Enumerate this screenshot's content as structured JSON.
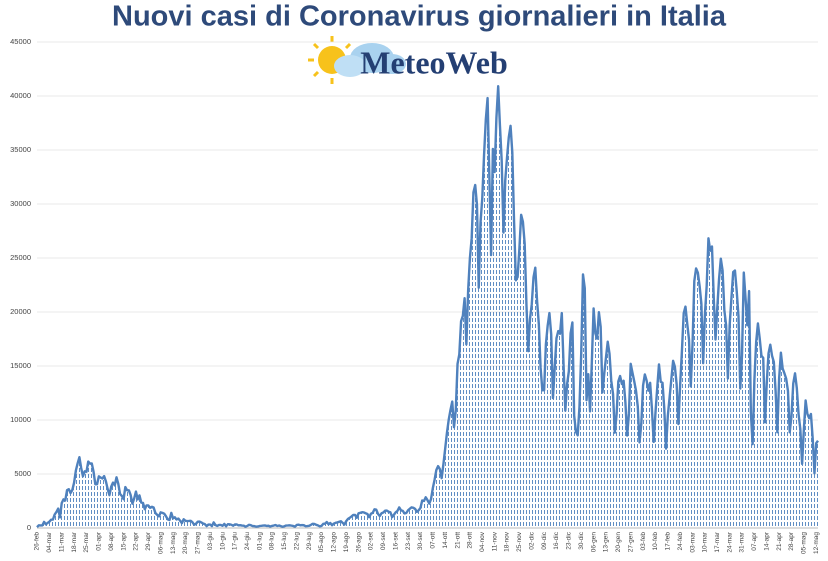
{
  "chart_data": {
    "type": "area",
    "title": "Nuovi casi di Coronavirus giornalieri in Italia",
    "annotations": [
      "MeteoWeb"
    ],
    "color": "#4f81bd",
    "grid": true,
    "ylim": [
      0,
      45000
    ],
    "yticks": [
      0,
      5000,
      10000,
      15000,
      20000,
      25000,
      30000,
      35000,
      40000,
      45000
    ],
    "categories": [
      "26-feb",
      null,
      null,
      null,
      null,
      null,
      null,
      "04-mar",
      null,
      null,
      null,
      null,
      null,
      null,
      "11-mar",
      null,
      null,
      null,
      null,
      null,
      null,
      "18-mar",
      null,
      null,
      null,
      null,
      null,
      null,
      "25-mar",
      null,
      null,
      null,
      null,
      null,
      null,
      "01-apr",
      null,
      null,
      null,
      null,
      null,
      null,
      "08-apr",
      null,
      null,
      null,
      null,
      null,
      null,
      "15-apr",
      null,
      null,
      null,
      null,
      null,
      null,
      "22-apr",
      null,
      null,
      null,
      null,
      null,
      null,
      "29-apr",
      null,
      null,
      null,
      null,
      null,
      null,
      "06-mag",
      null,
      null,
      null,
      null,
      null,
      null,
      "13-mag",
      null,
      null,
      null,
      null,
      null,
      null,
      "20-mag",
      null,
      null,
      null,
      null,
      null,
      null,
      "27-mag",
      null,
      null,
      null,
      null,
      null,
      null,
      "03-giu",
      null,
      null,
      null,
      null,
      null,
      null,
      "10-giu",
      null,
      null,
      null,
      null,
      null,
      null,
      "17-giu",
      null,
      null,
      null,
      null,
      null,
      null,
      "24-giu",
      null,
      null,
      null,
      null,
      null,
      null,
      "01-lug",
      null,
      null,
      null,
      null,
      null,
      null,
      "08-lug",
      null,
      null,
      null,
      null,
      null,
      null,
      "15-lug",
      null,
      null,
      null,
      null,
      null,
      null,
      "22-lug",
      null,
      null,
      null,
      null,
      null,
      null,
      "29-lug",
      null,
      null,
      null,
      null,
      null,
      null,
      "05-ago",
      null,
      null,
      null,
      null,
      null,
      null,
      "12-ago",
      null,
      null,
      null,
      null,
      null,
      null,
      "19-ago",
      null,
      null,
      null,
      null,
      null,
      null,
      "26-ago",
      null,
      null,
      null,
      null,
      null,
      null,
      "02-set",
      null,
      null,
      null,
      null,
      null,
      null,
      "09-set",
      null,
      null,
      null,
      null,
      null,
      null,
      "16-set",
      null,
      null,
      null,
      null,
      null,
      null,
      "23-set",
      null,
      null,
      null,
      null,
      null,
      null,
      "30-set",
      null,
      null,
      null,
      null,
      null,
      null,
      "07-ott",
      null,
      null,
      null,
      null,
      null,
      null,
      "14-ott",
      null,
      null,
      null,
      null,
      null,
      null,
      "21-ott",
      null,
      null,
      null,
      null,
      null,
      null,
      "28-ott",
      null,
      null,
      null,
      null,
      null,
      null,
      "04-nov",
      null,
      null,
      null,
      null,
      null,
      null,
      "11-nov",
      null,
      null,
      null,
      null,
      null,
      null,
      "18-nov",
      null,
      null,
      null,
      null,
      null,
      null,
      "25-nov",
      null,
      null,
      null,
      null,
      null,
      null,
      "02-dic",
      null,
      null,
      null,
      null,
      null,
      null,
      "09-dic",
      null,
      null,
      null,
      null,
      null,
      null,
      "16-dic",
      null,
      null,
      null,
      null,
      null,
      null,
      "23-dic",
      null,
      null,
      null,
      null,
      null,
      null,
      "30-dic",
      null,
      null,
      null,
      null,
      null,
      null,
      "06-gen",
      null,
      null,
      null,
      null,
      null,
      null,
      "13-gen",
      null,
      null,
      null,
      null,
      null,
      null,
      "20-gen",
      null,
      null,
      null,
      null,
      null,
      null,
      "27-gen",
      null,
      null,
      null,
      null,
      null,
      null,
      "03-feb",
      null,
      null,
      null,
      null,
      null,
      null,
      "10-feb",
      null,
      null,
      null,
      null,
      null,
      null,
      "17-feb",
      null,
      null,
      null,
      null,
      null,
      null,
      "24-feb",
      null,
      null,
      null,
      null,
      null,
      null,
      "03-mar",
      null,
      null,
      null,
      null,
      null,
      null,
      "10-mar",
      null,
      null,
      null,
      null,
      null,
      null,
      "17-mar",
      null,
      null,
      null,
      null,
      null,
      null,
      "24-mar",
      null,
      null,
      null,
      null,
      null,
      null,
      "31-mar",
      null,
      null,
      null,
      null,
      null,
      null,
      "07-apr",
      null,
      null,
      null,
      null,
      null,
      null,
      "14-apr",
      null,
      null,
      null,
      null,
      null,
      null,
      "21-apr",
      null,
      null,
      null,
      null,
      null,
      null,
      "28-apr",
      null,
      null,
      null,
      null,
      null,
      null,
      "05-mag",
      null,
      null,
      null,
      null,
      null,
      null,
      "12-mag",
      null
    ],
    "values": [
      78,
      250,
      238,
      240,
      566,
      342,
      466,
      587,
      769,
      778,
      1247,
      1492,
      1797,
      977,
      2313,
      2651,
      2547,
      3497,
      3590,
      3233,
      3526,
      4207,
      5322,
      5986,
      6557,
      5560,
      4789,
      5249,
      5210,
      6153,
      5959,
      5974,
      5217,
      4050,
      4053,
      4782,
      4668,
      4585,
      4805,
      4316,
      3599,
      3039,
      3836,
      4204,
      3951,
      4694,
      4092,
      3153,
      2972,
      2667,
      3786,
      3493,
      3491,
      3047,
      2256,
      2729,
      3370,
      2646,
      3021,
      2357,
      2324,
      1739,
      2091,
      2086,
      1872,
      1965,
      1900,
      1389,
      1221,
      1075,
      1444,
      1401,
      1327,
      1083,
      802,
      744,
      1402,
      888,
      992,
      789,
      875,
      675,
      451,
      813,
      665,
      642,
      652,
      669,
      531,
      300,
      397,
      584,
      593,
      516,
      416,
      355,
      178,
      318,
      321,
      177,
      518,
      270,
      197,
      280,
      283,
      202,
      379,
      163,
      346,
      338,
      301,
      210,
      328,
      333,
      251,
      262,
      224,
      218,
      122,
      190,
      296,
      259,
      175,
      174,
      126,
      142,
      187,
      201,
      223,
      235,
      192,
      208,
      138,
      193,
      229,
      276,
      188,
      234,
      169,
      114,
      162,
      230,
      233,
      249,
      219,
      190,
      129,
      282,
      306,
      252,
      275,
      255,
      170,
      181,
      202,
      289,
      386,
      379,
      295,
      239,
      159,
      190,
      384,
      402,
      552,
      347,
      463,
      259,
      412,
      481,
      523,
      574,
      629,
      479,
      320,
      642,
      845,
      947,
      1071,
      1210,
      1209,
      953,
      1367,
      1411,
      1462,
      1444,
      1365,
      1297,
      996,
      1326,
      1397,
      1733,
      1695,
      1297,
      1108,
      1370,
      1434,
      1597,
      1616,
      1501,
      1458,
      1008,
      1229,
      1452,
      1585,
      1907,
      1638,
      1587,
      1350,
      1391,
      1640,
      1786,
      1912,
      1869,
      1766,
      1494,
      1648,
      1851,
      2548,
      2499,
      2844,
      2578,
      2257,
      2677,
      3678,
      4458,
      5372,
      5724,
      5456,
      4619,
      5901,
      7332,
      8804,
      10010,
      10925,
      11705,
      9338,
      10874,
      15199,
      16079,
      19143,
      19644,
      21273,
      17012,
      21994,
      24991,
      26831,
      31084,
      31758,
      29907,
      22253,
      28244,
      30550,
      34505,
      37809,
      39811,
      32616,
      25271,
      35098,
      32961,
      37978,
      40902,
      37255,
      33979,
      27354,
      32191,
      34283,
      36176,
      37242,
      34767,
      28337,
      22930,
      23232,
      25853,
      29003,
      28352,
      26323,
      20648,
      16377,
      19350,
      20709,
      23225,
      24099,
      21052,
      18887,
      14842,
      12756,
      12757,
      16999,
      18727,
      19903,
      17938,
      12030,
      14844,
      17572,
      18236,
      17992,
      19903,
      15104,
      10872,
      13318,
      14522,
      18040,
      19037,
      10407,
      8913,
      8585,
      11212,
      16202,
      23477,
      22211,
      11831,
      14245,
      10800,
      15378,
      20331,
      18020,
      17533,
      19978,
      18627,
      12545,
      14242,
      15774,
      17246,
      16146,
      13633,
      12415,
      8825,
      10497,
      13571,
      14078,
      13331,
      13633,
      11629,
      8561,
      10593,
      15204,
      14372,
      13574,
      12715,
      11252,
      7925,
      9660,
      13189,
      14218,
      13659,
      12718,
      13442,
      11068,
      7970,
      10630,
      12956,
      15146,
      13532,
      13447,
      11068,
      7351,
      10386,
      12074,
      13762,
      15479,
      14931,
      13314,
      9630,
      13314,
      16424,
      19886,
      20499,
      18916,
      17455,
      13114,
      17083,
      22865,
      24036,
      23641,
      22409,
      20765,
      15267,
      19749,
      22409,
      26824,
      25673,
      26062,
      21315,
      17455,
      20396,
      23059,
      24935,
      23832,
      20159,
      18765,
      13846,
      18765,
      21267,
      23696,
      23839,
      21932,
      19611,
      12916,
      16017,
      23649,
      21261,
      18765,
      21932,
      10680,
      7767,
      13708,
      17221,
      18938,
      17567,
      15943,
      15746,
      9789,
      13447,
      16168,
      16974,
      15943,
      15370,
      12694,
      8864,
      13844,
      16232,
      14761,
      14320,
      13817,
      12694,
      8864,
      10404,
      13385,
      14320,
      12965,
      10554,
      9148,
      5948,
      9116,
      11807,
      10554,
      10176,
      10554,
      8292,
      5080,
      7852,
      8085
    ]
  }
}
